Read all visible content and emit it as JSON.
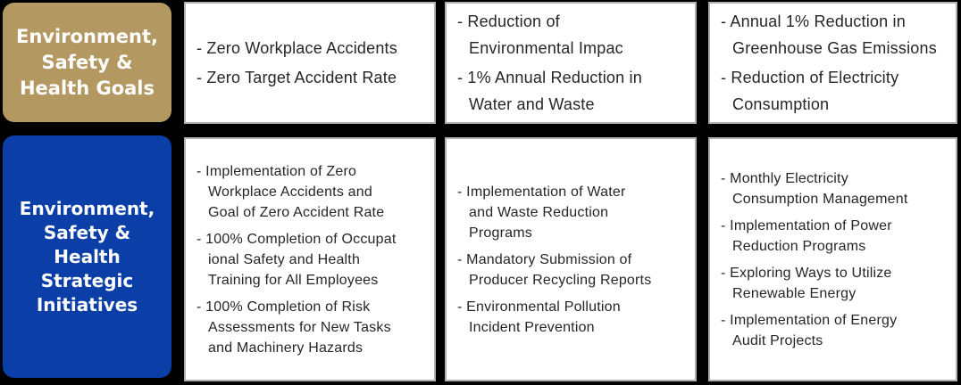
{
  "colors": {
    "background": "#000000",
    "goals_header_bg": "#b39862",
    "initiatives_header_bg": "#0b3ea7",
    "header_text": "#ffffff",
    "cell_bg": "#ffffff",
    "cell_border": "#b0b0b0",
    "cell_text": "#262626"
  },
  "goals_row": {
    "header_label": "Environment,\nSafety &\nHealth Goals",
    "cells": [
      {
        "items": [
          "- Zero Workplace Accidents",
          "- Zero Target Accident Rate"
        ]
      },
      {
        "items": [
          "- Reduction of\nEnvironmental Impac",
          "- 1% Annual Reduction in\nWater and Waste"
        ]
      },
      {
        "items": [
          "- Annual 1% Reduction in\nGreenhouse Gas Emissions",
          "- Reduction of Electricity\nConsumption"
        ]
      }
    ]
  },
  "initiatives_row": {
    "header_label": "Environment,\nSafety &\nHealth\nStrategic\nInitiatives",
    "cells": [
      {
        "items": [
          "- Implementation of Zero\nWorkplace Accidents and\nGoal of Zero Accident Rate",
          "- 100% Completion of Occupat\nional Safety and Health\nTraining for All Employees",
          "- 100% Completion of Risk\nAssessments for New Tasks\nand Machinery Hazards"
        ]
      },
      {
        "items": [
          "- Implementation of Water\nand Waste Reduction\nPrograms",
          "- Mandatory Submission of\nProducer Recycling Reports",
          "- Environmental Pollution\nIncident Prevention"
        ]
      },
      {
        "items": [
          "- Monthly Electricity\nConsumption Management",
          "- Implementation of Power\nReduction Programs",
          "- Exploring Ways to Utilize\nRenewable Energy",
          "- Implementation of Energy\nAudit Projects"
        ]
      }
    ]
  }
}
